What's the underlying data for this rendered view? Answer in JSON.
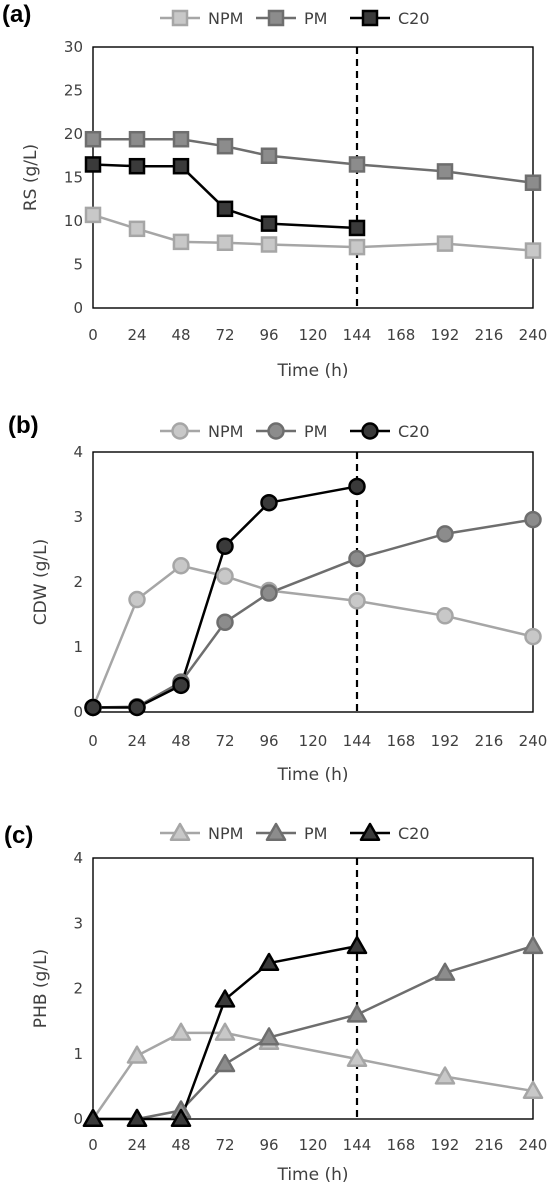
{
  "colors": {
    "NPM": {
      "fill": "#c8c8c8",
      "stroke": "#a6a6a6"
    },
    "PM": {
      "fill": "#8c8c8c",
      "stroke": "#6e6e6e"
    },
    "C20": {
      "fill": "#3a3a3a",
      "stroke": "#000000"
    }
  },
  "chart_data": [
    {
      "panel_label": "(a)",
      "type": "line",
      "marker": "square",
      "xlabel": "Time (h)",
      "ylabel": "RS (g/L)",
      "xlim": [
        0,
        240
      ],
      "ylim": [
        0,
        30
      ],
      "x_ticks": [
        0,
        24,
        48,
        72,
        96,
        120,
        144,
        168,
        192,
        216,
        240
      ],
      "y_ticks": [
        0,
        5,
        10,
        15,
        20,
        25,
        30
      ],
      "vline_x": 144,
      "legend": [
        "NPM",
        "PM",
        "C20"
      ],
      "series": [
        {
          "name": "NPM",
          "x": [
            0,
            24,
            48,
            72,
            96,
            144,
            192,
            240
          ],
          "values": [
            10.7,
            9.1,
            7.6,
            7.5,
            7.3,
            7.0,
            7.4,
            6.6
          ]
        },
        {
          "name": "PM",
          "x": [
            0,
            24,
            48,
            72,
            96,
            144,
            192,
            240
          ],
          "values": [
            19.4,
            19.4,
            19.4,
            18.6,
            17.5,
            16.5,
            15.7,
            14.4
          ]
        },
        {
          "name": "C20",
          "x": [
            0,
            24,
            48,
            72,
            96,
            144
          ],
          "values": [
            16.5,
            16.3,
            16.3,
            11.4,
            9.7,
            9.2
          ]
        }
      ]
    },
    {
      "panel_label": "(b)",
      "type": "line",
      "marker": "circle",
      "xlabel": "Time (h)",
      "ylabel": "CDW (g/L)",
      "xlim": [
        0,
        240
      ],
      "ylim": [
        0,
        4
      ],
      "x_ticks": [
        0,
        24,
        48,
        72,
        96,
        120,
        144,
        168,
        192,
        216,
        240
      ],
      "y_ticks": [
        0,
        1,
        2,
        3,
        4
      ],
      "vline_x": 144,
      "legend": [
        "NPM",
        "PM",
        "C20"
      ],
      "series": [
        {
          "name": "NPM",
          "x": [
            0,
            24,
            48,
            72,
            96,
            144,
            192,
            240
          ],
          "values": [
            0.07,
            1.73,
            2.25,
            2.09,
            1.87,
            1.71,
            1.48,
            1.16
          ]
        },
        {
          "name": "PM",
          "x": [
            0,
            24,
            48,
            72,
            96,
            144,
            192,
            240
          ],
          "values": [
            0.07,
            0.08,
            0.46,
            1.38,
            1.83,
            2.36,
            2.74,
            2.96
          ]
        },
        {
          "name": "C20",
          "x": [
            0,
            24,
            48,
            72,
            96,
            144
          ],
          "values": [
            0.07,
            0.07,
            0.41,
            2.55,
            3.22,
            3.47
          ]
        }
      ]
    },
    {
      "panel_label": "(c)",
      "type": "line",
      "marker": "triangle",
      "xlabel": "Time (h)",
      "ylabel": "PHB (g/L)",
      "xlim": [
        0,
        240
      ],
      "ylim": [
        0,
        4
      ],
      "x_ticks": [
        0,
        24,
        48,
        72,
        96,
        120,
        144,
        168,
        192,
        216,
        240
      ],
      "y_ticks": [
        0,
        1,
        2,
        3,
        4
      ],
      "vline_x": 144,
      "legend": [
        "NPM",
        "PM",
        "C20"
      ],
      "series": [
        {
          "name": "NPM",
          "x": [
            0,
            24,
            48,
            72,
            96,
            144,
            192,
            240
          ],
          "values": [
            0.0,
            0.97,
            1.32,
            1.32,
            1.18,
            0.92,
            0.65,
            0.43
          ]
        },
        {
          "name": "PM",
          "x": [
            0,
            24,
            48,
            72,
            96,
            144,
            192,
            240
          ],
          "values": [
            0.0,
            0.0,
            0.13,
            0.84,
            1.25,
            1.6,
            2.24,
            2.65
          ]
        },
        {
          "name": "C20",
          "x": [
            0,
            24,
            48,
            72,
            96,
            144
          ],
          "values": [
            0.0,
            0.0,
            0.0,
            1.83,
            2.39,
            2.65
          ]
        }
      ]
    }
  ]
}
